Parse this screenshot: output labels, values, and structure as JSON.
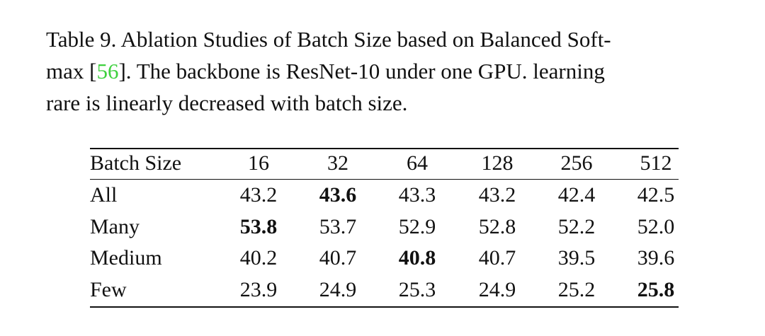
{
  "caption": {
    "line1": "Table 9. Ablation Studies of Batch Size based on Balanced Soft-",
    "line2_before": "max [",
    "citation": "56",
    "line2_after": "]. The backbone is ResNet-10 under one GPU. learning",
    "line3": "rare is linearly decreased with batch size."
  },
  "table": {
    "header": [
      "Batch Size",
      "16",
      "32",
      "64",
      "128",
      "256",
      "512"
    ],
    "rows": [
      {
        "label": "All",
        "values": [
          "43.2",
          "43.6",
          "43.3",
          "43.2",
          "42.4",
          "42.5"
        ],
        "best": 1
      },
      {
        "label": "Many",
        "values": [
          "53.8",
          "53.7",
          "52.9",
          "52.8",
          "52.2",
          "52.0"
        ],
        "best": 0
      },
      {
        "label": "Medium",
        "values": [
          "40.2",
          "40.7",
          "40.8",
          "40.7",
          "39.5",
          "39.6"
        ],
        "best": 2
      },
      {
        "label": "Few",
        "values": [
          "23.9",
          "24.9",
          "25.3",
          "24.9",
          "25.2",
          "25.8"
        ],
        "best": 5
      }
    ]
  }
}
